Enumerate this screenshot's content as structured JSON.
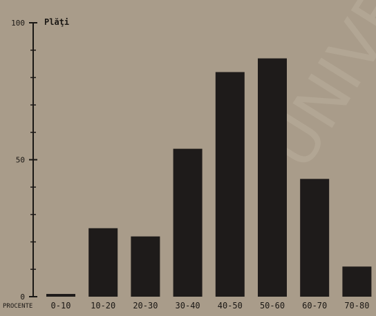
{
  "chart_data": {
    "type": "bar",
    "title": "",
    "ylabel": "Plăţi",
    "xlabel": "PROCENTE",
    "categories": [
      "0-10",
      "10-20",
      "20-30",
      "30-40",
      "40-50",
      "50-60",
      "60-70",
      "70-80"
    ],
    "values": [
      1,
      25,
      22,
      54,
      82,
      87,
      43,
      11
    ],
    "ylim": [
      0,
      100
    ],
    "yticks": [
      0,
      50,
      100
    ],
    "ytick_labels": [
      "0",
      "50",
      "100"
    ],
    "grid": false,
    "bar_color": "#1e1b1a",
    "background_color": "#a99c8a",
    "text_color": "#1a1714",
    "watermark_text": "UNIVER"
  }
}
